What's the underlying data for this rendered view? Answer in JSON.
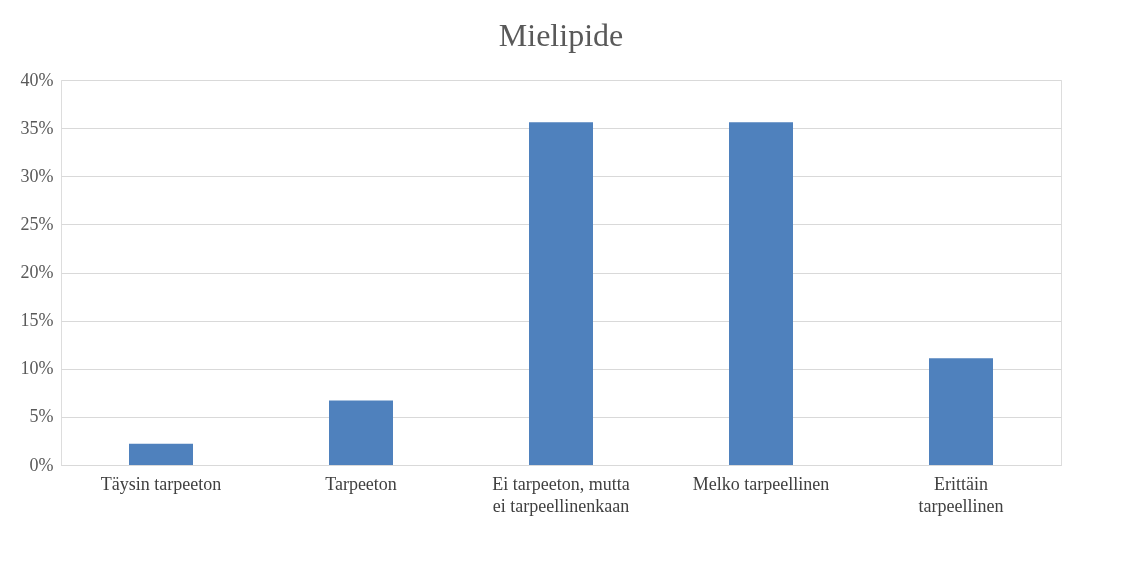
{
  "chart_data": {
    "type": "bar",
    "title": "Mielipide",
    "categories": [
      "Täysin tarpeeton",
      "Tarpeeton",
      "Ei tarpeeton, mutta ei tarpeellinenkaan",
      "Melko tarpeellinen",
      "Erittäin tarpeellinen"
    ],
    "values": [
      2.2,
      6.7,
      35.6,
      35.6,
      11.1
    ],
    "color": "#4f81bd",
    "ylim": [
      0,
      40
    ],
    "yticks": [
      {
        "value": 0,
        "label": "0%"
      },
      {
        "value": 5,
        "label": "5%"
      },
      {
        "value": 10,
        "label": "10%"
      },
      {
        "value": 15,
        "label": "15%"
      },
      {
        "value": 20,
        "label": "20%"
      },
      {
        "value": 25,
        "label": "25%"
      },
      {
        "value": 30,
        "label": "30%"
      },
      {
        "value": 35,
        "label": "35%"
      },
      {
        "value": 40,
        "label": "40%"
      }
    ],
    "grid": "y"
  }
}
